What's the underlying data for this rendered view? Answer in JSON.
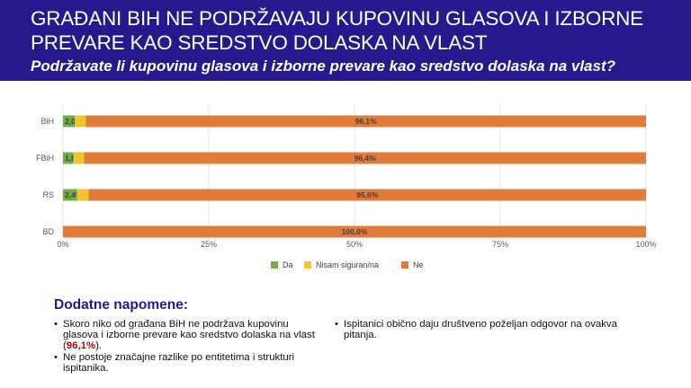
{
  "header": {
    "title": "GRAĐANI BIH NE PODRŽAVAJU KUPOVINU GLASOVA I IZBORNE PREVARE KAO SREDSTVO DOLASKA NA VLAST",
    "subtitle": "Podržavate li kupovinu glasova i izborne prevare kao sredstvo dolaska na vlast?"
  },
  "colors": {
    "header_bg": "#241a8e",
    "da": "#70ad47",
    "nisam": "#f4c430",
    "ne": "#e07b39",
    "highlight": "#c00000"
  },
  "chart_data": {
    "type": "bar",
    "orientation": "horizontal",
    "stacked": "percent",
    "categories": [
      "BiH",
      "FBiH",
      "RS",
      "BD"
    ],
    "series": [
      {
        "name": "Da",
        "color": "#70ad47",
        "values": [
          2.0,
          1.8,
          2.4,
          0.0
        ],
        "labels": [
          "2,0%",
          "1,8%",
          "2,4%",
          ""
        ]
      },
      {
        "name": "Nisam siguran/na",
        "color": "#f4c430",
        "values": [
          1.9,
          1.8,
          2.0,
          0.0
        ],
        "labels": [
          "",
          "",
          "",
          ""
        ]
      },
      {
        "name": "Ne",
        "color": "#e07b39",
        "values": [
          96.1,
          96.4,
          95.6,
          100.0
        ],
        "labels": [
          "96,1%",
          "96,4%",
          "95,6%",
          "100,0%"
        ]
      }
    ],
    "xlim": [
      0,
      100
    ],
    "xticks": [
      "0%",
      "25%",
      "50%",
      "75%",
      "100%"
    ],
    "grid": "vertical",
    "legend_position": "bottom"
  },
  "notes": {
    "title": "Dodatne napomene:",
    "bullet_symbol": "•",
    "left": [
      {
        "text": "Skoro niko od građana BiH ne podržava kupovinu glasova i izborne prevare kao sredstvo dolaska na vlast (",
        "highlight": "96,1%",
        "suffix": ")."
      },
      {
        "text": "Ne postoje značajne razlike po entitetima i strukturi ispitanika.",
        "highlight": "",
        "suffix": ""
      }
    ],
    "right": [
      {
        "text": "Ispitanici obično daju društveno poželjan odgovor na ovakva pitanja.",
        "highlight": "",
        "suffix": ""
      }
    ]
  }
}
